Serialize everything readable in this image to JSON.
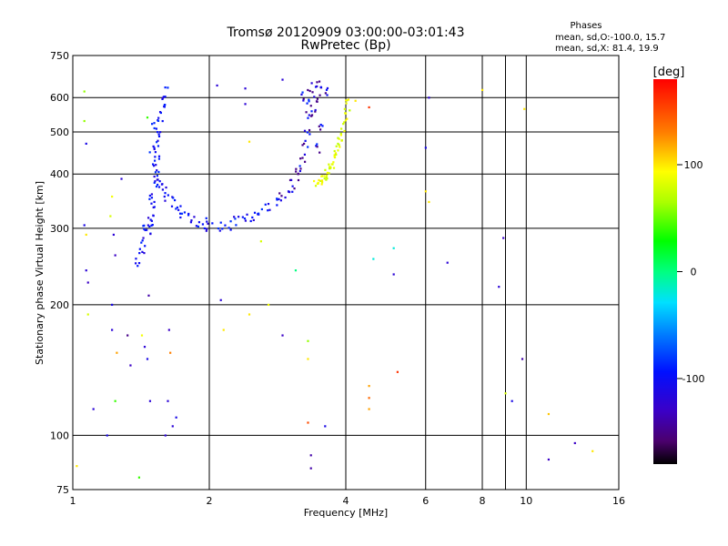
{
  "chart_data": {
    "type": "scatter",
    "title": "Tromsø 20120909 03:00:00-03:01:43",
    "subtitle": "RwPretec (Bp)",
    "xlabel": "Frequency [MHz]",
    "ylabel": "Stationary phase Virtual Height [km]",
    "x_scale": "log",
    "y_scale": "log",
    "xlim": [
      1,
      16
    ],
    "ylim": [
      75,
      750
    ],
    "x_ticks": [
      1,
      2,
      4,
      6,
      8,
      10,
      16
    ],
    "x_minor_ticks": [
      9
    ],
    "y_ticks": [
      75,
      100,
      200,
      300,
      400,
      500,
      600,
      750
    ],
    "grid": true,
    "phases": {
      "title": "Phases",
      "line1": "mean, sd,O:-100.0, 15.7",
      "line2": "mean, sd,X:  81.4, 19.9"
    },
    "colorbar": {
      "label": "[deg]",
      "min": -180,
      "max": 180,
      "ticks": [
        -100,
        0,
        100
      ]
    },
    "o_trace": [
      [
        1.4,
        250
      ],
      [
        1.42,
        265
      ],
      [
        1.44,
        280
      ],
      [
        1.46,
        295
      ],
      [
        1.48,
        315
      ],
      [
        1.49,
        335
      ],
      [
        1.5,
        360
      ],
      [
        1.51,
        385
      ],
      [
        1.52,
        410
      ],
      [
        1.53,
        440
      ],
      [
        1.54,
        470
      ],
      [
        1.55,
        500
      ],
      [
        1.56,
        530
      ],
      [
        1.57,
        565
      ],
      [
        1.58,
        595
      ],
      [
        1.6,
        615
      ],
      [
        1.5,
        450
      ],
      [
        1.52,
        520
      ],
      [
        1.45,
        300
      ],
      [
        1.47,
        305
      ],
      [
        1.52,
        400
      ],
      [
        1.55,
        385
      ],
      [
        1.58,
        370
      ],
      [
        1.62,
        355
      ],
      [
        1.65,
        345
      ],
      [
        1.7,
        335
      ],
      [
        1.75,
        325
      ],
      [
        1.8,
        318
      ],
      [
        1.88,
        312
      ],
      [
        1.95,
        308
      ],
      [
        2.0,
        305
      ],
      [
        2.1,
        304
      ],
      [
        2.2,
        306
      ],
      [
        2.3,
        310
      ],
      [
        2.4,
        314
      ],
      [
        2.5,
        318
      ],
      [
        2.6,
        325
      ],
      [
        2.7,
        333
      ],
      [
        2.8,
        342
      ],
      [
        2.9,
        352
      ],
      [
        3.0,
        365
      ],
      [
        3.05,
        380
      ],
      [
        3.1,
        395
      ],
      [
        3.15,
        415
      ],
      [
        3.2,
        440
      ],
      [
        3.25,
        470
      ],
      [
        3.28,
        500
      ],
      [
        3.3,
        540
      ],
      [
        3.32,
        580
      ],
      [
        3.35,
        620
      ],
      [
        3.2,
        600
      ],
      [
        3.4,
        560
      ],
      [
        3.45,
        600
      ],
      [
        3.5,
        640
      ],
      [
        3.55,
        520
      ],
      [
        3.48,
        460
      ],
      [
        3.42,
        650
      ],
      [
        3.6,
        620
      ]
    ],
    "x_trace": [
      [
        3.45,
        380
      ],
      [
        3.5,
        385
      ],
      [
        3.55,
        390
      ],
      [
        3.6,
        400
      ],
      [
        3.65,
        410
      ],
      [
        3.7,
        420
      ],
      [
        3.75,
        435
      ],
      [
        3.8,
        450
      ],
      [
        3.85,
        465
      ],
      [
        3.9,
        480
      ],
      [
        3.95,
        500
      ],
      [
        4.0,
        530
      ],
      [
        4.02,
        560
      ],
      [
        4.05,
        590
      ],
      [
        3.62,
        395
      ],
      [
        3.72,
        415
      ]
    ],
    "scattered_points": [
      {
        "x": 1.06,
        "y": 620,
        "phase": 60
      },
      {
        "x": 1.06,
        "y": 530,
        "phase": 60
      },
      {
        "x": 1.07,
        "y": 470,
        "phase": -110
      },
      {
        "x": 1.06,
        "y": 305,
        "phase": -110
      },
      {
        "x": 1.07,
        "y": 290,
        "phase": 100
      },
      {
        "x": 1.07,
        "y": 240,
        "phase": -120
      },
      {
        "x": 1.08,
        "y": 225,
        "phase": -130
      },
      {
        "x": 1.08,
        "y": 190,
        "phase": 80
      },
      {
        "x": 1.02,
        "y": 85,
        "phase": 100
      },
      {
        "x": 1.11,
        "y": 115,
        "phase": -120
      },
      {
        "x": 1.19,
        "y": 100,
        "phase": -110
      },
      {
        "x": 1.22,
        "y": 355,
        "phase": 90
      },
      {
        "x": 1.21,
        "y": 320,
        "phase": 80
      },
      {
        "x": 1.23,
        "y": 290,
        "phase": -120
      },
      {
        "x": 1.24,
        "y": 260,
        "phase": -130
      },
      {
        "x": 1.22,
        "y": 200,
        "phase": -110
      },
      {
        "x": 1.22,
        "y": 175,
        "phase": -120
      },
      {
        "x": 1.25,
        "y": 155,
        "phase": 120
      },
      {
        "x": 1.24,
        "y": 120,
        "phase": 40
      },
      {
        "x": 1.28,
        "y": 390,
        "phase": -120
      },
      {
        "x": 1.32,
        "y": 170,
        "phase": -150
      },
      {
        "x": 1.34,
        "y": 145,
        "phase": -130
      },
      {
        "x": 1.4,
        "y": 80,
        "phase": 40
      },
      {
        "x": 1.42,
        "y": 170,
        "phase": 90
      },
      {
        "x": 1.44,
        "y": 160,
        "phase": -120
      },
      {
        "x": 1.46,
        "y": 150,
        "phase": -110
      },
      {
        "x": 1.47,
        "y": 210,
        "phase": -140
      },
      {
        "x": 1.48,
        "y": 120,
        "phase": -120
      },
      {
        "x": 1.46,
        "y": 540,
        "phase": 40
      },
      {
        "x": 1.63,
        "y": 175,
        "phase": -130
      },
      {
        "x": 1.64,
        "y": 155,
        "phase": 130
      },
      {
        "x": 1.62,
        "y": 120,
        "phase": -120
      },
      {
        "x": 1.6,
        "y": 100,
        "phase": -120
      },
      {
        "x": 1.66,
        "y": 105,
        "phase": -120
      },
      {
        "x": 1.69,
        "y": 110,
        "phase": -110
      },
      {
        "x": 2.08,
        "y": 640,
        "phase": -120
      },
      {
        "x": 2.12,
        "y": 205,
        "phase": -120
      },
      {
        "x": 2.15,
        "y": 175,
        "phase": 100
      },
      {
        "x": 2.4,
        "y": 630,
        "phase": -120
      },
      {
        "x": 2.4,
        "y": 580,
        "phase": -120
      },
      {
        "x": 2.45,
        "y": 475,
        "phase": 100
      },
      {
        "x": 2.45,
        "y": 190,
        "phase": 100
      },
      {
        "x": 2.6,
        "y": 280,
        "phase": 80
      },
      {
        "x": 2.7,
        "y": 200,
        "phase": 90
      },
      {
        "x": 2.9,
        "y": 660,
        "phase": -120
      },
      {
        "x": 2.9,
        "y": 170,
        "phase": -130
      },
      {
        "x": 3.1,
        "y": 240,
        "phase": 0
      },
      {
        "x": 3.3,
        "y": 165,
        "phase": 60
      },
      {
        "x": 3.3,
        "y": 150,
        "phase": 100
      },
      {
        "x": 3.3,
        "y": 107,
        "phase": 150
      },
      {
        "x": 3.35,
        "y": 90,
        "phase": -140
      },
      {
        "x": 3.35,
        "y": 84,
        "phase": -140
      },
      {
        "x": 3.6,
        "y": 105,
        "phase": -110
      },
      {
        "x": 4.2,
        "y": 590,
        "phase": 100
      },
      {
        "x": 4.5,
        "y": 570,
        "phase": 160
      },
      {
        "x": 4.5,
        "y": 130,
        "phase": 120
      },
      {
        "x": 4.5,
        "y": 122,
        "phase": 140
      },
      {
        "x": 4.6,
        "y": 255,
        "phase": -20
      },
      {
        "x": 4.5,
        "y": 115,
        "phase": 120
      },
      {
        "x": 5.1,
        "y": 270,
        "phase": -20
      },
      {
        "x": 5.1,
        "y": 235,
        "phase": -120
      },
      {
        "x": 5.2,
        "y": 140,
        "phase": 160
      },
      {
        "x": 6.1,
        "y": 600,
        "phase": -120
      },
      {
        "x": 6.0,
        "y": 460,
        "phase": -110
      },
      {
        "x": 6.0,
        "y": 365,
        "phase": 100
      },
      {
        "x": 6.1,
        "y": 345,
        "phase": 100
      },
      {
        "x": 6.7,
        "y": 250,
        "phase": -120
      },
      {
        "x": 8.0,
        "y": 625,
        "phase": 100
      },
      {
        "x": 8.7,
        "y": 220,
        "phase": -120
      },
      {
        "x": 8.9,
        "y": 285,
        "phase": -130
      },
      {
        "x": 9.0,
        "y": 125,
        "phase": 80
      },
      {
        "x": 9.3,
        "y": 120,
        "phase": -110
      },
      {
        "x": 9.8,
        "y": 150,
        "phase": -140
      },
      {
        "x": 9.9,
        "y": 565,
        "phase": 100
      },
      {
        "x": 11.2,
        "y": 112,
        "phase": 110
      },
      {
        "x": 11.2,
        "y": 88,
        "phase": -130
      },
      {
        "x": 12.8,
        "y": 96,
        "phase": -130
      },
      {
        "x": 14.0,
        "y": 92,
        "phase": 100
      }
    ]
  }
}
